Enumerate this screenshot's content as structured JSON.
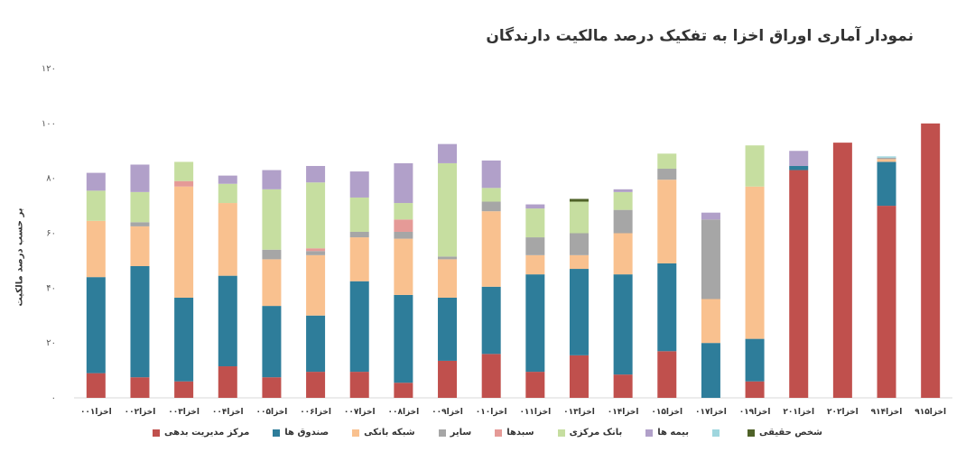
{
  "chart_data": {
    "type": "bar",
    "stacked": true,
    "title": "نمودار آماری اوراق اخزا به تفکیک درصد مالکیت دارندگان",
    "ylabel": "بر حسب درصد مالکیت",
    "ylim": [
      0,
      120
    ],
    "yticks": [
      0,
      20,
      40,
      60,
      80,
      100,
      120
    ],
    "ytick_labels": [
      "۰",
      "۲۰",
      "۴۰",
      "۶۰",
      "۸۰",
      "۱۰۰",
      "۱۲۰"
    ],
    "grid": false,
    "legend_position": "bottom",
    "categories": [
      "اخزا۰۰۱",
      "اخزا۰۰۲",
      "اخزا۰۰۳",
      "اخزا۰۰۴",
      "اخزا۰۰۵",
      "اخزا۰۰۶",
      "اخزا۰۰۷",
      "اخزا۰۰۸",
      "اخزا۰۰۹",
      "اخزا۰۱۰",
      "اخزا۰۱۱",
      "اخزا۰۱۳",
      "اخزا۰۱۴",
      "اخزا۰۱۵",
      "اخزا۰۱۷",
      "اخزا۰۱۹",
      "اخزا۲۰۱",
      "اخزا۲۰۲",
      "اخزا۹۱۴",
      "اخزا۹۱۵"
    ],
    "series": [
      {
        "name": "مرکز مدیریت بدهی",
        "color": "#c0504d",
        "values": [
          9,
          7.5,
          6,
          11.5,
          7.5,
          9.5,
          9.5,
          5.5,
          13.5,
          16,
          9.5,
          15.5,
          8.5,
          17,
          0,
          6,
          83,
          93,
          70,
          100
        ]
      },
      {
        "name": "صندوق ها",
        "color": "#2e7d9a",
        "values": [
          35,
          40.5,
          30.5,
          33,
          26,
          20.5,
          33,
          32,
          23,
          24.5,
          35.5,
          31.5,
          36.5,
          32,
          20,
          15.5,
          1.5,
          0,
          16,
          0
        ]
      },
      {
        "name": "شبکه بانکی",
        "color": "#f9c18f",
        "values": [
          20.5,
          14.5,
          40.5,
          26.5,
          17,
          22,
          16,
          20.5,
          14,
          27.5,
          7,
          5,
          15,
          30.5,
          16,
          55.5,
          0,
          0,
          1,
          0
        ]
      },
      {
        "name": "سایر",
        "color": "#a6a6a6",
        "values": [
          0,
          1.5,
          0,
          0,
          3.5,
          1.5,
          2,
          2.5,
          1,
          3.5,
          6.5,
          8,
          8.5,
          4,
          29,
          0,
          0,
          0,
          0.5,
          0
        ]
      },
      {
        "name": "سبدها",
        "color": "#e59a97",
        "values": [
          0,
          0,
          2,
          0,
          0,
          1,
          0,
          4.5,
          0,
          0,
          0,
          0,
          0,
          0,
          0,
          0,
          0,
          0,
          0,
          0
        ]
      },
      {
        "name": "بانک مرکزی",
        "color": "#c6dea0",
        "values": [
          11,
          11,
          7,
          7,
          22,
          24,
          12.5,
          6,
          34,
          5,
          10.5,
          11.5,
          6.5,
          5.5,
          0,
          15,
          0,
          0,
          0,
          0
        ]
      },
      {
        "name": "بیمه ها",
        "color": "#b1a0c9",
        "values": [
          6.5,
          10,
          0,
          3,
          7,
          6,
          9.5,
          14.5,
          7,
          10,
          1.5,
          0,
          1,
          0,
          2.5,
          0,
          5.5,
          0,
          0,
          0
        ]
      },
      {
        "name": "شخص حقیقی",
        "color": "#9fd6de",
        "values": [
          0,
          0,
          0,
          0,
          0,
          0,
          0,
          0,
          0,
          0,
          0,
          0,
          0,
          0,
          0,
          0,
          0,
          0,
          0.5,
          0
        ]
      },
      {
        "name": "شخص حقیقی",
        "color": "#4f6228",
        "values": [
          0,
          0,
          0,
          0,
          0,
          0,
          0,
          0,
          0,
          0,
          0,
          1,
          0,
          0,
          0,
          0,
          0,
          0,
          0,
          0
        ]
      }
    ],
    "legend": [
      {
        "label": "مرکز مدیریت بدهی",
        "color": "#c0504d"
      },
      {
        "label": "صندوق ها",
        "color": "#2e7d9a"
      },
      {
        "label": "شبکه بانکی",
        "color": "#f9c18f"
      },
      {
        "label": "سایر",
        "color": "#a6a6a6"
      },
      {
        "label": "سبدها",
        "color": "#e59a97"
      },
      {
        "label": "بانک مرکزی",
        "color": "#c6dea0"
      },
      {
        "label": "بیمه ها",
        "color": "#b1a0c9"
      },
      {
        "label": "",
        "color": "#9fd6de"
      },
      {
        "label": "شخص حقیقی",
        "color": "#4f6228"
      }
    ]
  }
}
